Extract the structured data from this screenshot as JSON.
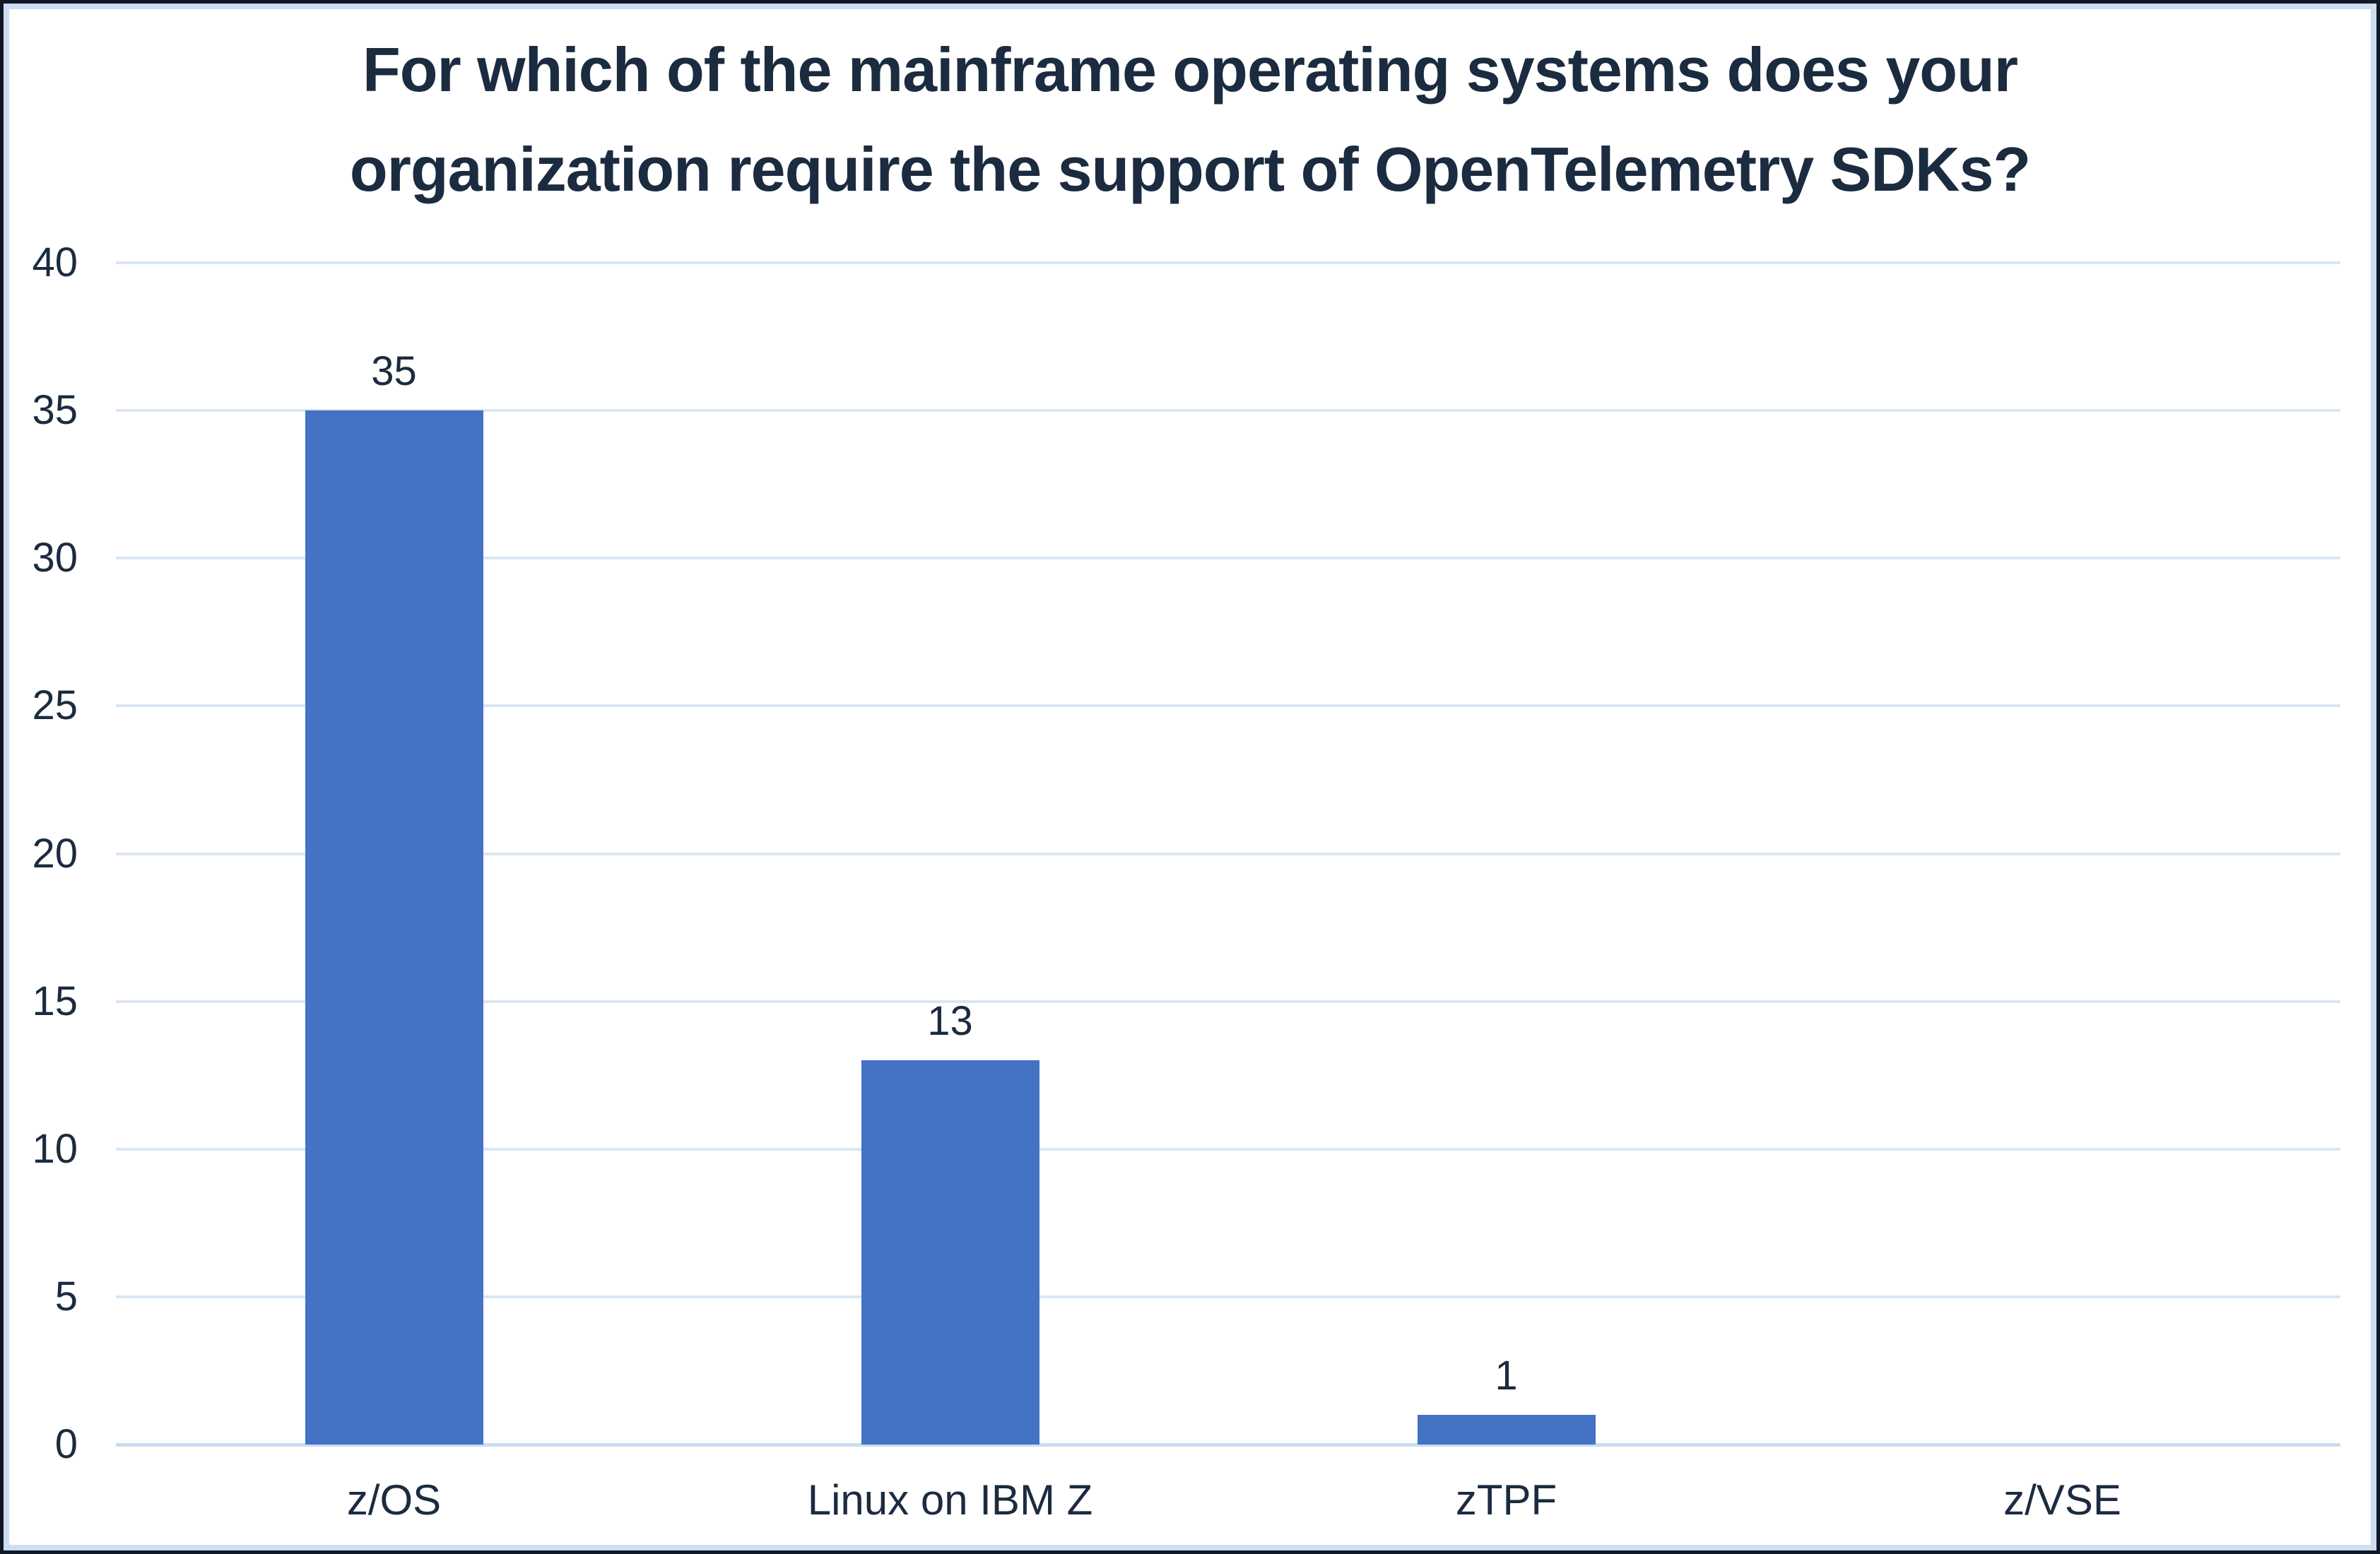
{
  "chart_data": {
    "type": "bar",
    "title": "For which of the mainframe operating systems does your organization require the support of OpenTelemetry SDKs?",
    "title_lines": [
      "For which of the mainframe operating systems does your",
      "organization require the support of OpenTelemetry SDKs?"
    ],
    "categories": [
      "z/OS",
      "Linux on IBM Z",
      "zTPF",
      "z/VSE"
    ],
    "values": [
      35,
      13,
      1,
      0
    ],
    "data_labels": [
      "35",
      "13",
      "1",
      ""
    ],
    "xlabel": "",
    "ylabel": "",
    "y_ticks": [
      0,
      5,
      10,
      15,
      20,
      25,
      30,
      35,
      40
    ],
    "ylim": [
      0,
      40
    ],
    "grid": true,
    "legend_position": "none",
    "colors": {
      "bar_fill": "#4472C4",
      "text": "#1B2B40",
      "gridline": "#DAE6F4",
      "baseline": "#C9DCF0",
      "inner_border": "#CBDEF3",
      "outer_border": "#101926",
      "background": "#FFFFFF"
    }
  }
}
